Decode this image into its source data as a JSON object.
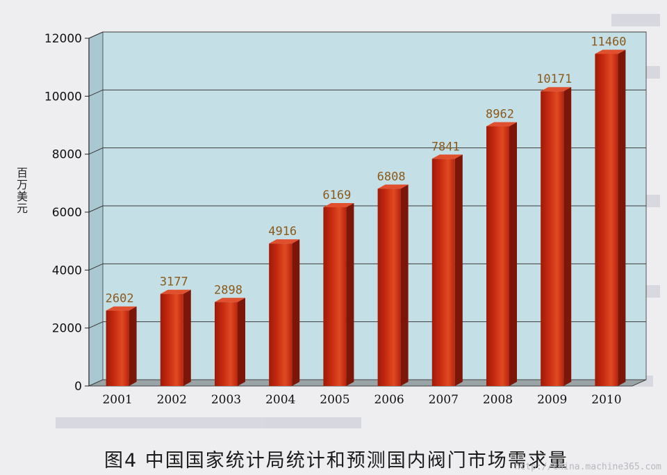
{
  "chart_data": {
    "type": "bar",
    "ylabel": "百万美元",
    "ylim": [
      0,
      12000
    ],
    "yticks": [
      0,
      2000,
      4000,
      6000,
      8000,
      10000,
      12000
    ],
    "grid": true,
    "categories": [
      "2001",
      "2002",
      "2003",
      "2004",
      "2005",
      "2006",
      "2007",
      "2008",
      "2009",
      "2010"
    ],
    "values": [
      2602,
      3177,
      2898,
      4916,
      6169,
      6808,
      7841,
      8962,
      10171,
      11460
    ],
    "data_labels": [
      "2602",
      "3177",
      "2898",
      "4916",
      "6169",
      "6808",
      "7841",
      "8962",
      "10171",
      "11460"
    ]
  },
  "caption": "图4  中国国家统计局统计和预测国内阀门市场需求量",
  "watermark": "http://china.machine365.com",
  "colors": {
    "plot_background": "#c4dfe6",
    "bar_front": "#c62a10",
    "bar_side": "#7c1608",
    "bar_top": "#e0502e",
    "data_label": "#8a5a1c"
  }
}
